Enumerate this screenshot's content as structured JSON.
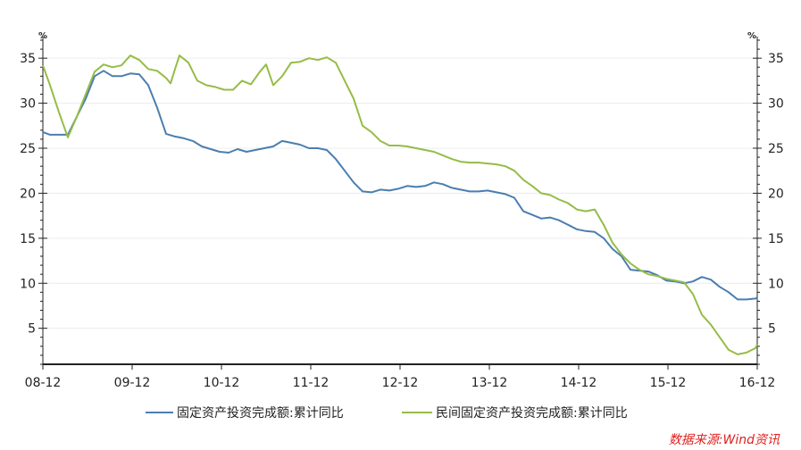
{
  "chart_data": {
    "type": "line",
    "title": "",
    "xlabel": "",
    "ylabel": "",
    "unit_left": "%",
    "unit_right": "%",
    "ylim": [
      1,
      37
    ],
    "yticks": [
      5,
      10,
      15,
      20,
      25,
      30,
      35
    ],
    "x_range": [
      2008.92,
      2016.92
    ],
    "x_ticks": [
      {
        "label": "08-12",
        "x": 2008.92
      },
      {
        "label": "09-12",
        "x": 2009.92
      },
      {
        "label": "10-12",
        "x": 2010.92
      },
      {
        "label": "11-12",
        "x": 2011.92
      },
      {
        "label": "12-12",
        "x": 2012.92
      },
      {
        "label": "13-12",
        "x": 2013.92
      },
      {
        "label": "14-12",
        "x": 2014.92
      },
      {
        "label": "15-12",
        "x": 2015.92
      },
      {
        "label": "16-12",
        "x": 2016.92
      }
    ],
    "grid": true,
    "legend_position": "bottom",
    "series": [
      {
        "name": "固定资产投资完成额:累计同比",
        "color": "#4a7eb0",
        "points": [
          [
            2008.92,
            26.8
          ],
          [
            2009.0,
            26.5
          ],
          [
            2009.1,
            26.5
          ],
          [
            2009.2,
            26.5
          ],
          [
            2009.3,
            28.5
          ],
          [
            2009.4,
            30.5
          ],
          [
            2009.5,
            33.0
          ],
          [
            2009.6,
            33.6
          ],
          [
            2009.7,
            33.0
          ],
          [
            2009.8,
            33.0
          ],
          [
            2009.9,
            33.3
          ],
          [
            2010.0,
            33.2
          ],
          [
            2010.1,
            32.0
          ],
          [
            2010.2,
            29.5
          ],
          [
            2010.3,
            26.6
          ],
          [
            2010.4,
            26.3
          ],
          [
            2010.5,
            26.1
          ],
          [
            2010.6,
            25.8
          ],
          [
            2010.7,
            25.2
          ],
          [
            2010.8,
            24.9
          ],
          [
            2010.9,
            24.6
          ],
          [
            2011.0,
            24.5
          ],
          [
            2011.1,
            24.9
          ],
          [
            2011.2,
            24.6
          ],
          [
            2011.3,
            24.8
          ],
          [
            2011.4,
            25.0
          ],
          [
            2011.5,
            25.2
          ],
          [
            2011.6,
            25.8
          ],
          [
            2011.7,
            25.6
          ],
          [
            2011.8,
            25.4
          ],
          [
            2011.9,
            25.0
          ],
          [
            2012.0,
            25.0
          ],
          [
            2012.1,
            24.8
          ],
          [
            2012.2,
            23.8
          ],
          [
            2012.3,
            22.5
          ],
          [
            2012.4,
            21.2
          ],
          [
            2012.5,
            20.2
          ],
          [
            2012.6,
            20.1
          ],
          [
            2012.7,
            20.4
          ],
          [
            2012.8,
            20.3
          ],
          [
            2012.9,
            20.5
          ],
          [
            2013.0,
            20.8
          ],
          [
            2013.1,
            20.7
          ],
          [
            2013.2,
            20.8
          ],
          [
            2013.3,
            21.2
          ],
          [
            2013.4,
            21.0
          ],
          [
            2013.5,
            20.6
          ],
          [
            2013.6,
            20.4
          ],
          [
            2013.7,
            20.2
          ],
          [
            2013.8,
            20.2
          ],
          [
            2013.9,
            20.3
          ],
          [
            2014.0,
            20.1
          ],
          [
            2014.1,
            19.9
          ],
          [
            2014.2,
            19.5
          ],
          [
            2014.3,
            18.0
          ],
          [
            2014.4,
            17.6
          ],
          [
            2014.5,
            17.2
          ],
          [
            2014.6,
            17.3
          ],
          [
            2014.7,
            17.0
          ],
          [
            2014.8,
            16.5
          ],
          [
            2014.9,
            16.0
          ],
          [
            2015.0,
            15.8
          ],
          [
            2015.1,
            15.7
          ],
          [
            2015.2,
            15.0
          ],
          [
            2015.3,
            13.8
          ],
          [
            2015.4,
            13.0
          ],
          [
            2015.5,
            11.5
          ],
          [
            2015.6,
            11.4
          ],
          [
            2015.7,
            11.3
          ],
          [
            2015.8,
            10.9
          ],
          [
            2015.9,
            10.3
          ],
          [
            2016.0,
            10.2
          ],
          [
            2016.1,
            10.0
          ],
          [
            2016.2,
            10.2
          ],
          [
            2016.3,
            10.7
          ],
          [
            2016.4,
            10.4
          ],
          [
            2016.5,
            9.6
          ],
          [
            2016.6,
            9.0
          ],
          [
            2016.7,
            8.2
          ],
          [
            2016.8,
            8.2
          ],
          [
            2016.9,
            8.3
          ],
          [
            2016.92,
            8.4
          ]
        ]
      },
      {
        "name": "民间固定资产投资完成额:累计同比",
        "color": "#96bc46",
        "points": [
          [
            2008.92,
            34.2
          ],
          [
            2009.0,
            32.0
          ],
          [
            2009.1,
            29.0
          ],
          [
            2009.2,
            26.2
          ],
          [
            2009.3,
            28.5
          ],
          [
            2009.4,
            31.0
          ],
          [
            2009.5,
            33.5
          ],
          [
            2009.6,
            34.3
          ],
          [
            2009.7,
            34.0
          ],
          [
            2009.8,
            34.2
          ],
          [
            2009.9,
            35.3
          ],
          [
            2010.0,
            34.8
          ],
          [
            2010.1,
            33.8
          ],
          [
            2010.2,
            33.6
          ],
          [
            2010.3,
            32.8
          ],
          [
            2010.35,
            32.2
          ],
          [
            2010.4,
            33.8
          ],
          [
            2010.45,
            35.3
          ],
          [
            2010.55,
            34.5
          ],
          [
            2010.65,
            32.5
          ],
          [
            2010.75,
            32.0
          ],
          [
            2010.85,
            31.8
          ],
          [
            2010.95,
            31.5
          ],
          [
            2011.05,
            31.5
          ],
          [
            2011.15,
            32.5
          ],
          [
            2011.25,
            32.1
          ],
          [
            2011.35,
            33.5
          ],
          [
            2011.42,
            34.3
          ],
          [
            2011.5,
            32.0
          ],
          [
            2011.6,
            33.0
          ],
          [
            2011.7,
            34.5
          ],
          [
            2011.8,
            34.6
          ],
          [
            2011.9,
            35.0
          ],
          [
            2012.0,
            34.8
          ],
          [
            2012.1,
            35.1
          ],
          [
            2012.2,
            34.5
          ],
          [
            2012.3,
            32.5
          ],
          [
            2012.4,
            30.5
          ],
          [
            2012.5,
            27.5
          ],
          [
            2012.6,
            26.8
          ],
          [
            2012.7,
            25.8
          ],
          [
            2012.8,
            25.3
          ],
          [
            2012.9,
            25.3
          ],
          [
            2013.0,
            25.2
          ],
          [
            2013.1,
            25.0
          ],
          [
            2013.2,
            24.8
          ],
          [
            2013.3,
            24.6
          ],
          [
            2013.4,
            24.2
          ],
          [
            2013.5,
            23.8
          ],
          [
            2013.6,
            23.5
          ],
          [
            2013.7,
            23.4
          ],
          [
            2013.8,
            23.4
          ],
          [
            2013.9,
            23.3
          ],
          [
            2014.0,
            23.2
          ],
          [
            2014.1,
            23.0
          ],
          [
            2014.2,
            22.5
          ],
          [
            2014.3,
            21.5
          ],
          [
            2014.4,
            20.8
          ],
          [
            2014.5,
            20.0
          ],
          [
            2014.6,
            19.8
          ],
          [
            2014.7,
            19.3
          ],
          [
            2014.8,
            18.9
          ],
          [
            2014.9,
            18.2
          ],
          [
            2015.0,
            18.0
          ],
          [
            2015.1,
            18.2
          ],
          [
            2015.2,
            16.5
          ],
          [
            2015.3,
            14.5
          ],
          [
            2015.4,
            13.2
          ],
          [
            2015.5,
            12.2
          ],
          [
            2015.6,
            11.5
          ],
          [
            2015.7,
            11.0
          ],
          [
            2015.8,
            10.8
          ],
          [
            2015.9,
            10.5
          ],
          [
            2016.0,
            10.3
          ],
          [
            2016.1,
            10.1
          ],
          [
            2016.2,
            8.8
          ],
          [
            2016.3,
            6.5
          ],
          [
            2016.4,
            5.4
          ],
          [
            2016.5,
            4.0
          ],
          [
            2016.6,
            2.6
          ],
          [
            2016.7,
            2.1
          ],
          [
            2016.8,
            2.3
          ],
          [
            2016.9,
            2.8
          ],
          [
            2016.92,
            3.2
          ]
        ]
      }
    ],
    "source": "数据来源:Wind资讯"
  }
}
